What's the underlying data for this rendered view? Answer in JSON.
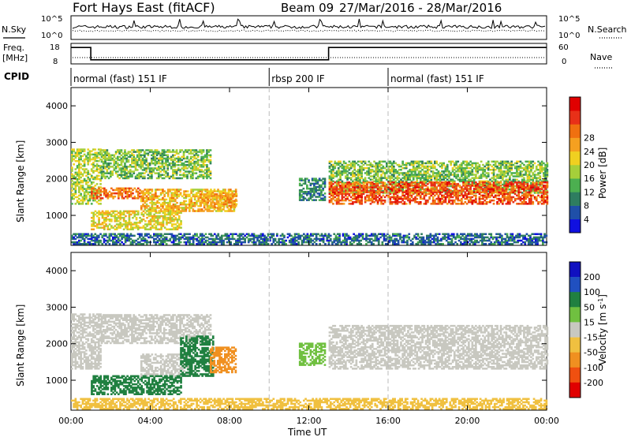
{
  "header": {
    "station": "Fort Hays East (fitACF)",
    "beam": "Beam 09",
    "date_range": "27/Mar/2016 - 28/Mar/2016"
  },
  "labels": {
    "nsky": "N.Sky",
    "nsearch": "N.Search",
    "freq": "Freq.",
    "freq_unit": "[MHz]",
    "nave": "Nave",
    "cpid": "CPID",
    "slant_range": "Slant Range [km]",
    "time_ut": "Time UT",
    "power": "Power [dB]",
    "velocity": "Velocity [m s",
    "velocity_exp": "-1",
    "velocity_close": "]"
  },
  "noise_axis": {
    "left_ticks": [
      "10^5",
      "10^0"
    ],
    "right_ticks": [
      "10^5",
      "10^0"
    ]
  },
  "freq_axis": {
    "left_ticks": [
      "18",
      "8"
    ],
    "right_ticks": [
      "60",
      "0"
    ],
    "freq_series": [
      {
        "t": 0,
        "v": 16.0
      },
      {
        "t": 1.0,
        "v": 16.0
      },
      {
        "t": 1.0,
        "v": 10.0
      },
      {
        "t": 10.0,
        "v": 10.0
      },
      {
        "t": 10.0,
        "v": 10.0
      },
      {
        "t": 13.0,
        "v": 10.0
      },
      {
        "t": 13.0,
        "v": 16.0
      },
      {
        "t": 24.0,
        "v": 16.0
      }
    ]
  },
  "cpid_segments": [
    {
      "start": 0,
      "end": 10,
      "label": "normal (fast) 151 IF"
    },
    {
      "start": 10,
      "end": 16,
      "label": "rbsp 200 IF"
    },
    {
      "start": 16,
      "end": 24,
      "label": "normal (fast) 151 IF"
    }
  ],
  "x_axis": {
    "range": [
      0,
      24
    ],
    "ticks": [
      "00:00",
      "04:00",
      "08:00",
      "12:00",
      "16:00",
      "20:00",
      "00:00"
    ]
  },
  "y_axis": {
    "range": [
      180,
      4500
    ],
    "ticks": [
      "1000",
      "2000",
      "3000",
      "4000"
    ]
  },
  "power_scale": {
    "labels": [
      "4",
      "8",
      "12",
      "16",
      "20",
      "24",
      "28"
    ],
    "colors": [
      "#1010e0",
      "#1f4fa8",
      "#2e7d60",
      "#4caf50",
      "#a6cf3a",
      "#f0d020",
      "#f5a020",
      "#f07010",
      "#e83018",
      "#e00000"
    ]
  },
  "velocity_scale": {
    "labels": [
      "200",
      "100",
      "50",
      "15",
      "-15",
      "-50",
      "-100",
      "-200"
    ],
    "colors": [
      "#1010c0",
      "#2050c0",
      "#208040",
      "#70c040",
      "#c8c8c0",
      "#f0c040",
      "#f09020",
      "#f05010",
      "#e00000"
    ]
  },
  "chart_data": {
    "type": "heatmap",
    "title": "Fort Hays East (fitACF)  Beam 09  27/Mar/2016 - 28/Mar/2016",
    "xlabel": "Time UT",
    "ylabel": "Slant Range [km]",
    "xlim": [
      0,
      24
    ],
    "ylim": [
      180,
      4500
    ],
    "panels": [
      {
        "name": "Power",
        "unit": "dB",
        "clim": [
          0,
          30
        ],
        "echo_regions": [
          {
            "t0": 0.0,
            "t1": 1.5,
            "r0": 1300,
            "r1": 2800,
            "level": 14
          },
          {
            "t0": 1.0,
            "t1": 3.5,
            "r0": 1450,
            "r1": 1750,
            "level": 22
          },
          {
            "t0": 1.5,
            "t1": 7.0,
            "r0": 2000,
            "r1": 2800,
            "level": 12
          },
          {
            "t0": 3.5,
            "t1": 8.3,
            "r0": 1100,
            "r1": 1700,
            "level": 18
          },
          {
            "t0": 1.0,
            "t1": 5.5,
            "r0": 600,
            "r1": 1100,
            "level": 16
          },
          {
            "t0": 6.5,
            "t1": 8.3,
            "r0": 1200,
            "r1": 1600,
            "level": 20
          },
          {
            "t0": 11.5,
            "t1": 12.8,
            "r0": 1400,
            "r1": 2000,
            "level": 8
          },
          {
            "t0": 13.0,
            "t1": 24.0,
            "r0": 1600,
            "r1": 2500,
            "level": 12
          },
          {
            "t0": 13.0,
            "t1": 24.0,
            "r0": 1300,
            "r1": 1900,
            "level": 24
          },
          {
            "t0": 0.0,
            "t1": 24.0,
            "r0": 200,
            "r1": 500,
            "level": 6
          }
        ]
      },
      {
        "name": "Velocity",
        "unit": "m s-1",
        "clim": [
          -200,
          200
        ],
        "echo_regions": [
          {
            "t0": 0.0,
            "t1": 1.5,
            "r0": 1300,
            "r1": 2800,
            "level": 0
          },
          {
            "t0": 1.5,
            "t1": 7.0,
            "r0": 2000,
            "r1": 2800,
            "level": 0
          },
          {
            "t0": 3.5,
            "t1": 6.0,
            "r0": 1100,
            "r1": 1700,
            "level": 0
          },
          {
            "t0": 1.0,
            "t1": 5.5,
            "r0": 600,
            "r1": 1100,
            "level": 60
          },
          {
            "t0": 5.5,
            "t1": 7.2,
            "r0": 1100,
            "r1": 2200,
            "level": 60
          },
          {
            "t0": 7.0,
            "t1": 8.3,
            "r0": 1200,
            "r1": 1900,
            "level": -70
          },
          {
            "t0": 11.5,
            "t1": 12.8,
            "r0": 1400,
            "r1": 2000,
            "level": 40
          },
          {
            "t0": 13.0,
            "t1": 24.0,
            "r0": 1300,
            "r1": 2500,
            "level": 0
          },
          {
            "t0": 0.0,
            "t1": 24.0,
            "r0": 200,
            "r1": 500,
            "level": -40
          }
        ]
      }
    ]
  }
}
